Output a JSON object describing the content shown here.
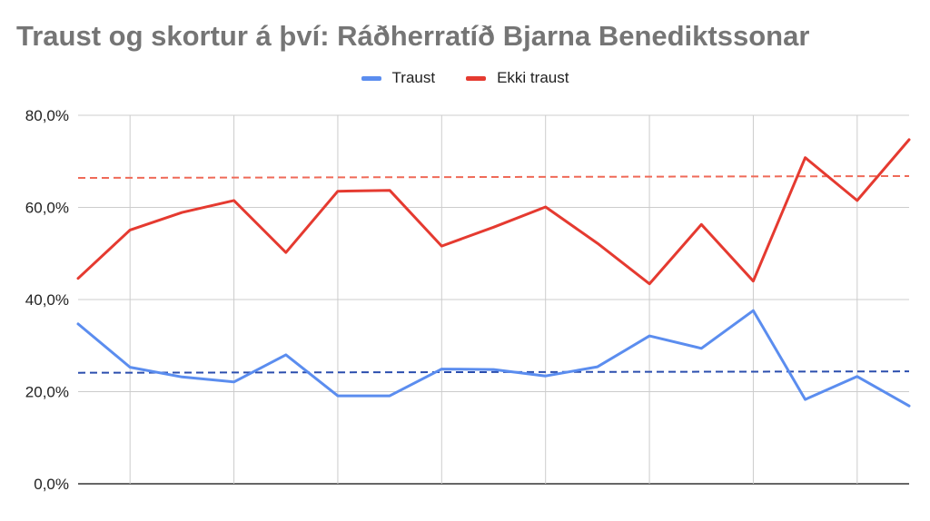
{
  "chart_data": {
    "type": "line",
    "title": "Traust og skortur á því: Ráðherratíð Bjarna Benediktssonar",
    "xlabel": "",
    "ylabel": "",
    "ylim": [
      0,
      80
    ],
    "yticks": [
      0,
      20,
      40,
      60,
      80
    ],
    "ytick_labels": [
      "0,0%",
      "20,0%",
      "40,0%",
      "60,0%",
      "80,0%"
    ],
    "x": [
      1,
      2,
      3,
      4,
      5,
      6,
      7,
      8,
      9,
      10,
      11,
      12,
      13,
      14,
      15,
      16,
      17
    ],
    "grid": true,
    "legend_position": "top",
    "series": [
      {
        "name": "Traust",
        "color": "#5b8def",
        "values": [
          34.7,
          25.3,
          23.2,
          22.1,
          28.0,
          19.1,
          19.1,
          24.9,
          24.8,
          23.4,
          25.4,
          32.1,
          29.4,
          37.6,
          18.3,
          23.3,
          16.9
        ],
        "trendline": {
          "start": 24.1,
          "end": 24.4,
          "color": "#2b4eae"
        }
      },
      {
        "name": "Ekki traust",
        "color": "#e53a30",
        "values": [
          44.6,
          55.1,
          58.9,
          61.5,
          50.2,
          63.5,
          63.7,
          51.6,
          55.7,
          60.1,
          52.2,
          43.4,
          56.3,
          44.0,
          70.8,
          61.5,
          74.7
        ],
        "trendline": {
          "start": 66.4,
          "end": 66.8,
          "color": "#ef6a58"
        }
      }
    ]
  }
}
